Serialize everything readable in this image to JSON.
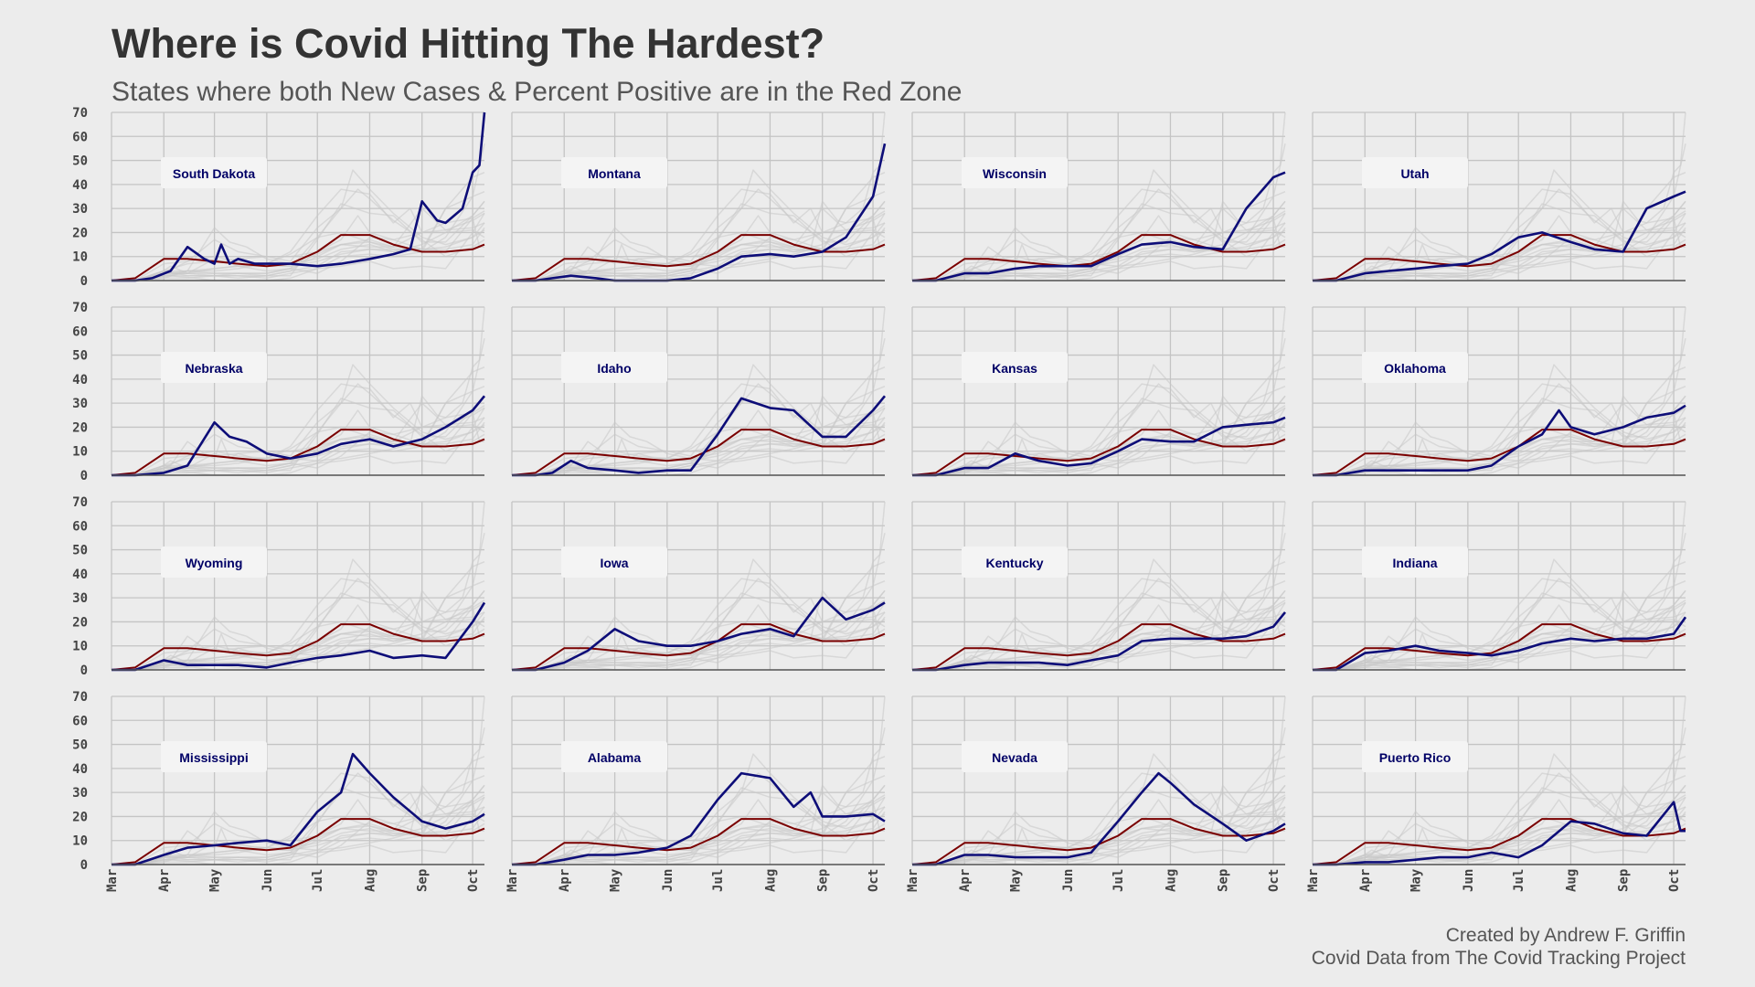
{
  "title": "Where is Covid Hitting The Hardest?",
  "subtitle": "States where both New Cases & Percent Positive are in the Red Zone",
  "caption": {
    "line1": "Created by Andrew F. Griffin",
    "line2": "Covid Data from The Covid Tracking Project"
  },
  "colors": {
    "background": "#ececec",
    "highlight": "#0d0d78",
    "national": "#7a0000",
    "background_states": "#c8c8c8",
    "grid": "#c4c4c4",
    "label_box": "#f4f4f4",
    "label_text": "#000066"
  },
  "chart_data": {
    "type": "line",
    "layout": "small-multiples 4x4",
    "x_ticks": [
      "Mar",
      "Apr",
      "May",
      "Jun",
      "Jul",
      "Aug",
      "Sep",
      "Oct"
    ],
    "x_range": [
      "2020-03-01",
      "2020-10-08"
    ],
    "ylim": [
      0,
      70
    ],
    "y_ticks": [
      0,
      10,
      20,
      30,
      40,
      50,
      60,
      70
    ],
    "grid": true,
    "reference_series_x": [
      "2020-03-01",
      "2020-03-15",
      "2020-04-01",
      "2020-04-15",
      "2020-05-01",
      "2020-05-15",
      "2020-06-01",
      "2020-06-15",
      "2020-07-01",
      "2020-07-15",
      "2020-08-01",
      "2020-08-15",
      "2020-09-01",
      "2020-09-15",
      "2020-10-01",
      "2020-10-08"
    ],
    "national_series": [
      0,
      1,
      9,
      9,
      8,
      7,
      6,
      7,
      12,
      19,
      19,
      15,
      12,
      12,
      13,
      15
    ],
    "panels": [
      {
        "state": "South Dakota",
        "x": [
          "2020-03-01",
          "2020-03-15",
          "2020-03-25",
          "2020-04-05",
          "2020-04-15",
          "2020-04-25",
          "2020-05-01",
          "2020-05-05",
          "2020-05-10",
          "2020-05-15",
          "2020-05-25",
          "2020-06-01",
          "2020-06-15",
          "2020-07-01",
          "2020-07-15",
          "2020-08-01",
          "2020-08-15",
          "2020-08-25",
          "2020-09-01",
          "2020-09-10",
          "2020-09-15",
          "2020-09-25",
          "2020-10-01",
          "2020-10-05",
          "2020-10-08"
        ],
        "values": [
          0,
          0,
          1,
          4,
          14,
          9,
          7,
          15,
          7,
          9,
          7,
          7,
          7,
          6,
          7,
          9,
          11,
          13,
          33,
          25,
          24,
          30,
          45,
          48,
          70
        ]
      },
      {
        "state": "Montana",
        "x": [
          "2020-03-01",
          "2020-03-15",
          "2020-03-25",
          "2020-04-05",
          "2020-04-20",
          "2020-05-01",
          "2020-05-15",
          "2020-06-01",
          "2020-06-15",
          "2020-07-01",
          "2020-07-15",
          "2020-08-01",
          "2020-08-15",
          "2020-09-01",
          "2020-09-15",
          "2020-10-01",
          "2020-10-08"
        ],
        "values": [
          0,
          0,
          1,
          2,
          1,
          0,
          0,
          0,
          1,
          5,
          10,
          11,
          10,
          12,
          18,
          35,
          57
        ]
      },
      {
        "state": "Wisconsin",
        "x": [
          "2020-03-01",
          "2020-03-15",
          "2020-04-01",
          "2020-04-15",
          "2020-05-01",
          "2020-05-15",
          "2020-06-01",
          "2020-06-15",
          "2020-07-01",
          "2020-07-15",
          "2020-08-01",
          "2020-08-15",
          "2020-09-01",
          "2020-09-15",
          "2020-10-01",
          "2020-10-08"
        ],
        "values": [
          0,
          0,
          3,
          3,
          5,
          6,
          6,
          6,
          11,
          15,
          16,
          14,
          13,
          30,
          43,
          45
        ]
      },
      {
        "state": "Utah",
        "x": [
          "2020-03-01",
          "2020-03-15",
          "2020-04-01",
          "2020-04-15",
          "2020-05-01",
          "2020-05-15",
          "2020-06-01",
          "2020-06-15",
          "2020-07-01",
          "2020-07-15",
          "2020-08-01",
          "2020-08-15",
          "2020-09-01",
          "2020-09-15",
          "2020-10-01",
          "2020-10-08"
        ],
        "values": [
          0,
          0,
          3,
          4,
          5,
          6,
          7,
          11,
          18,
          20,
          16,
          13,
          12,
          30,
          35,
          37
        ]
      },
      {
        "state": "Nebraska",
        "x": [
          "2020-03-01",
          "2020-03-15",
          "2020-04-01",
          "2020-04-15",
          "2020-05-01",
          "2020-05-10",
          "2020-05-20",
          "2020-06-01",
          "2020-06-15",
          "2020-07-01",
          "2020-07-15",
          "2020-08-01",
          "2020-08-15",
          "2020-09-01",
          "2020-09-15",
          "2020-10-01",
          "2020-10-08"
        ],
        "values": [
          0,
          0,
          1,
          4,
          22,
          16,
          14,
          9,
          7,
          9,
          13,
          15,
          12,
          15,
          20,
          27,
          33
        ]
      },
      {
        "state": "Idaho",
        "x": [
          "2020-03-01",
          "2020-03-15",
          "2020-03-25",
          "2020-04-05",
          "2020-04-15",
          "2020-05-01",
          "2020-05-15",
          "2020-06-01",
          "2020-06-15",
          "2020-07-01",
          "2020-07-15",
          "2020-08-01",
          "2020-08-15",
          "2020-09-01",
          "2020-09-15",
          "2020-10-01",
          "2020-10-08"
        ],
        "values": [
          0,
          0,
          1,
          6,
          3,
          2,
          1,
          2,
          2,
          17,
          32,
          28,
          27,
          16,
          16,
          27,
          33
        ]
      },
      {
        "state": "Kansas",
        "x": [
          "2020-03-01",
          "2020-03-15",
          "2020-04-01",
          "2020-04-15",
          "2020-05-01",
          "2020-05-15",
          "2020-06-01",
          "2020-06-15",
          "2020-07-01",
          "2020-07-15",
          "2020-08-01",
          "2020-08-15",
          "2020-09-01",
          "2020-09-15",
          "2020-10-01",
          "2020-10-08"
        ],
        "values": [
          0,
          0,
          3,
          3,
          9,
          6,
          4,
          5,
          10,
          15,
          14,
          14,
          20,
          21,
          22,
          24
        ]
      },
      {
        "state": "Oklahoma",
        "x": [
          "2020-03-01",
          "2020-03-15",
          "2020-04-01",
          "2020-04-15",
          "2020-05-01",
          "2020-05-15",
          "2020-06-01",
          "2020-06-15",
          "2020-07-01",
          "2020-07-15",
          "2020-07-25",
          "2020-08-01",
          "2020-08-15",
          "2020-09-01",
          "2020-09-15",
          "2020-10-01",
          "2020-10-08"
        ],
        "values": [
          0,
          0,
          2,
          2,
          2,
          2,
          2,
          4,
          12,
          17,
          27,
          20,
          17,
          20,
          24,
          26,
          29
        ]
      },
      {
        "state": "Wyoming",
        "x": [
          "2020-03-01",
          "2020-03-15",
          "2020-04-01",
          "2020-04-15",
          "2020-05-01",
          "2020-05-15",
          "2020-06-01",
          "2020-06-15",
          "2020-07-01",
          "2020-07-15",
          "2020-08-01",
          "2020-08-15",
          "2020-09-01",
          "2020-09-15",
          "2020-10-01",
          "2020-10-08"
        ],
        "values": [
          0,
          0,
          4,
          2,
          2,
          2,
          1,
          3,
          5,
          6,
          8,
          5,
          6,
          5,
          20,
          28
        ]
      },
      {
        "state": "Iowa",
        "x": [
          "2020-03-01",
          "2020-03-15",
          "2020-04-01",
          "2020-04-15",
          "2020-05-01",
          "2020-05-15",
          "2020-06-01",
          "2020-06-15",
          "2020-07-01",
          "2020-07-15",
          "2020-08-01",
          "2020-08-15",
          "2020-09-01",
          "2020-09-15",
          "2020-10-01",
          "2020-10-08"
        ],
        "values": [
          0,
          0,
          3,
          8,
          17,
          12,
          10,
          10,
          12,
          15,
          17,
          14,
          30,
          21,
          25,
          28
        ]
      },
      {
        "state": "Kentucky",
        "x": [
          "2020-03-01",
          "2020-03-15",
          "2020-04-01",
          "2020-04-15",
          "2020-05-01",
          "2020-05-15",
          "2020-06-01",
          "2020-06-15",
          "2020-07-01",
          "2020-07-15",
          "2020-08-01",
          "2020-08-15",
          "2020-09-01",
          "2020-09-15",
          "2020-10-01",
          "2020-10-08"
        ],
        "values": [
          0,
          0,
          2,
          3,
          3,
          3,
          2,
          4,
          6,
          12,
          13,
          13,
          13,
          14,
          18,
          24
        ]
      },
      {
        "state": "Indiana",
        "x": [
          "2020-03-01",
          "2020-03-15",
          "2020-04-01",
          "2020-04-15",
          "2020-05-01",
          "2020-05-15",
          "2020-06-01",
          "2020-06-15",
          "2020-07-01",
          "2020-07-15",
          "2020-08-01",
          "2020-08-15",
          "2020-09-01",
          "2020-09-15",
          "2020-10-01",
          "2020-10-08"
        ],
        "values": [
          0,
          0,
          7,
          8,
          10,
          8,
          7,
          6,
          8,
          11,
          13,
          12,
          13,
          13,
          15,
          22
        ]
      },
      {
        "state": "Mississippi",
        "x": [
          "2020-03-01",
          "2020-03-15",
          "2020-04-01",
          "2020-04-15",
          "2020-05-01",
          "2020-05-15",
          "2020-06-01",
          "2020-06-15",
          "2020-07-01",
          "2020-07-15",
          "2020-07-22",
          "2020-08-01",
          "2020-08-15",
          "2020-09-01",
          "2020-09-15",
          "2020-10-01",
          "2020-10-08"
        ],
        "values": [
          0,
          0,
          4,
          7,
          8,
          9,
          10,
          8,
          22,
          30,
          46,
          38,
          28,
          18,
          15,
          18,
          21
        ]
      },
      {
        "state": "Alabama",
        "x": [
          "2020-03-01",
          "2020-03-15",
          "2020-04-01",
          "2020-04-15",
          "2020-05-01",
          "2020-05-15",
          "2020-06-01",
          "2020-06-15",
          "2020-07-01",
          "2020-07-15",
          "2020-08-01",
          "2020-08-15",
          "2020-08-25",
          "2020-09-01",
          "2020-09-15",
          "2020-10-01",
          "2020-10-08"
        ],
        "values": [
          0,
          0,
          2,
          4,
          4,
          5,
          7,
          12,
          27,
          38,
          36,
          24,
          30,
          20,
          20,
          21,
          18
        ]
      },
      {
        "state": "Nevada",
        "x": [
          "2020-03-01",
          "2020-03-15",
          "2020-04-01",
          "2020-04-15",
          "2020-05-01",
          "2020-05-15",
          "2020-06-01",
          "2020-06-15",
          "2020-07-01",
          "2020-07-15",
          "2020-07-25",
          "2020-08-01",
          "2020-08-15",
          "2020-09-01",
          "2020-09-15",
          "2020-10-01",
          "2020-10-08"
        ],
        "values": [
          0,
          0,
          4,
          4,
          3,
          3,
          3,
          5,
          18,
          30,
          38,
          34,
          25,
          17,
          10,
          14,
          17
        ]
      },
      {
        "state": "Puerto Rico",
        "x": [
          "2020-03-01",
          "2020-03-15",
          "2020-04-01",
          "2020-04-15",
          "2020-05-01",
          "2020-05-15",
          "2020-06-01",
          "2020-06-15",
          "2020-07-01",
          "2020-07-15",
          "2020-08-01",
          "2020-08-15",
          "2020-09-01",
          "2020-09-15",
          "2020-10-01",
          "2020-10-05",
          "2020-10-08"
        ],
        "values": [
          0,
          0,
          1,
          1,
          2,
          3,
          3,
          5,
          3,
          8,
          18,
          17,
          13,
          12,
          26,
          14,
          14
        ]
      }
    ]
  }
}
